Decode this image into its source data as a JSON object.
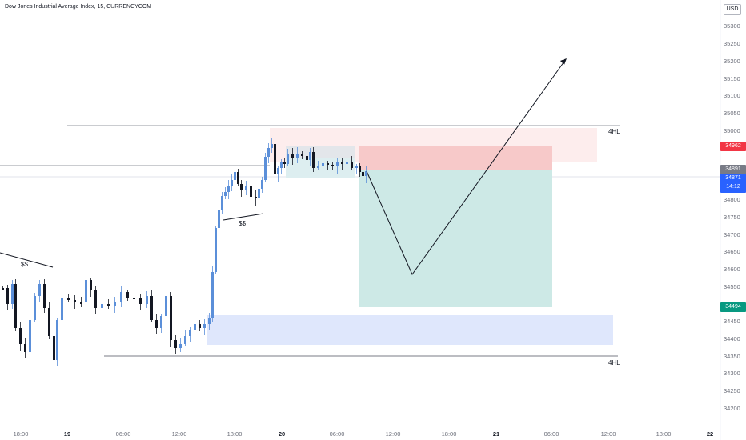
{
  "header": {
    "title": "Dow Jones Industrial Average Index, 15, CURRENCYCOM",
    "currency": "USD"
  },
  "price_axis": {
    "ticks": [
      "35300",
      "35250",
      "35200",
      "35150",
      "35100",
      "35050",
      "35000",
      "34800",
      "34750",
      "34700",
      "34650",
      "34600",
      "34550",
      "34450",
      "34400",
      "34350",
      "34300",
      "34250",
      "34200"
    ]
  },
  "time_axis": {
    "ticks": [
      {
        "label": "18:00",
        "bold": false
      },
      {
        "label": "19",
        "bold": true
      },
      {
        "label": "06:00",
        "bold": false
      },
      {
        "label": "12:00",
        "bold": false
      },
      {
        "label": "18:00",
        "bold": false
      },
      {
        "label": "20",
        "bold": true
      },
      {
        "label": "06:00",
        "bold": false
      },
      {
        "label": "12:00",
        "bold": false
      },
      {
        "label": "18:00",
        "bold": false
      },
      {
        "label": "21",
        "bold": true
      },
      {
        "label": "06:00",
        "bold": false
      },
      {
        "label": "12:00",
        "bold": false
      },
      {
        "label": "18:00",
        "bold": false
      },
      {
        "label": "22",
        "bold": true
      }
    ]
  },
  "price_tags": {
    "stop": {
      "value": "34962",
      "color": "#f23645"
    },
    "last": {
      "value": "34891",
      "color": "#787b86"
    },
    "current": {
      "value": "34871",
      "timer": "14:12",
      "color": "#2962ff"
    },
    "target": {
      "value": "34494",
      "color": "#089981"
    }
  },
  "annotations": {
    "upper_level": "4HL",
    "lower_level": "4HL",
    "liquidity_left": "$$",
    "liquidity_mid": "$$"
  },
  "colors": {
    "bull": "#5b8fd9",
    "bear": "#131722",
    "stop_zone": "#f7b5b5",
    "target_zone": "#b2dfdb",
    "demand_zone": "#dbe5fd",
    "supply_zone": "#fde8e8"
  }
}
